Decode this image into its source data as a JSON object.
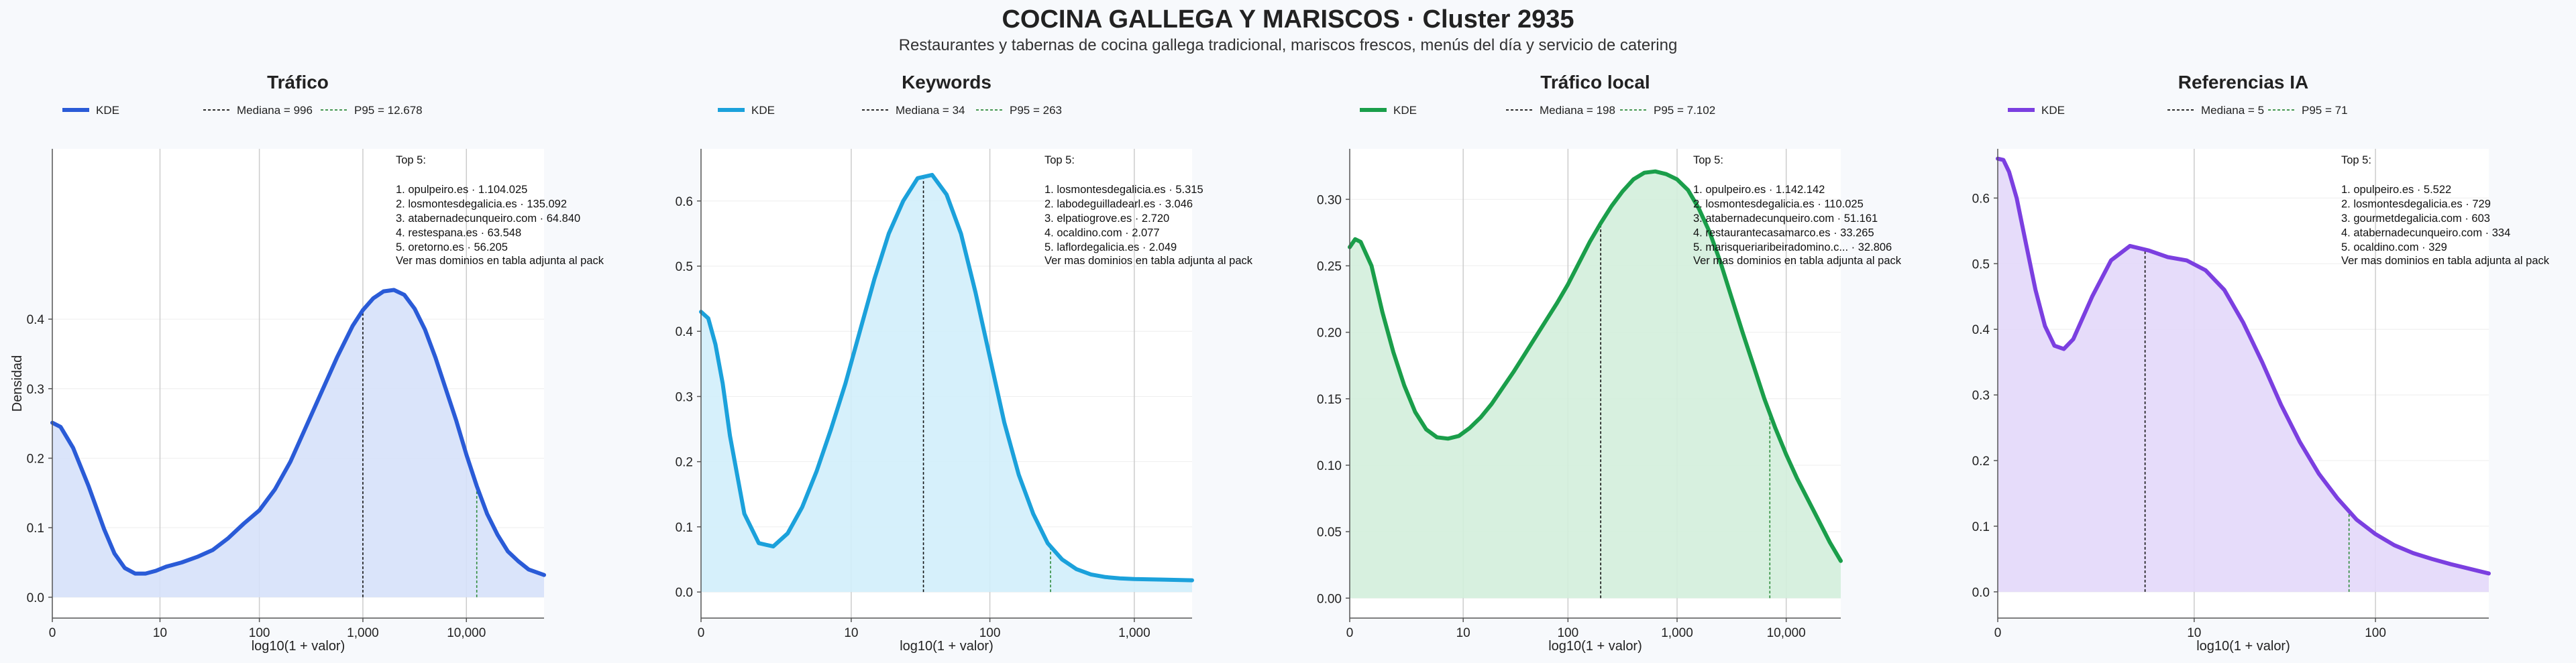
{
  "title": "COCINA GALLEGA Y MARISCOS · Cluster 2935",
  "subtitle": "Restaurantes y tabernas de cocina gallega tradicional, mariscos frescos, menús del día y servicio de catering",
  "chart_data": [
    {
      "type": "area",
      "title": "Tráfico",
      "color": "#2a5bd7",
      "fill": "#d6e1fa",
      "xlabel": "log10(1 + valor)",
      "ylabel": "Densidad",
      "xlim": [
        0,
        4.75
      ],
      "ylim": [
        -0.03,
        0.645
      ],
      "x_ticks": [
        {
          "v": 0,
          "label": "0"
        },
        {
          "v": 1.04,
          "label": "10"
        },
        {
          "v": 2.0,
          "label": "100"
        },
        {
          "v": 3.0,
          "label": "1,000"
        },
        {
          "v": 4.0,
          "label": "10,000"
        }
      ],
      "y_ticks": [
        {
          "v": 0,
          "label": "0.0"
        },
        {
          "v": 0.1,
          "label": "0.1"
        },
        {
          "v": 0.2,
          "label": "0.2"
        },
        {
          "v": 0.3,
          "label": "0.3"
        },
        {
          "v": 0.4,
          "label": "0.4"
        }
      ],
      "kde_x": [
        0,
        0.08,
        0.2,
        0.35,
        0.5,
        0.6,
        0.7,
        0.8,
        0.9,
        1.0,
        1.1,
        1.25,
        1.4,
        1.55,
        1.7,
        1.85,
        2.0,
        2.15,
        2.3,
        2.45,
        2.6,
        2.75,
        2.9,
        3.0,
        3.1,
        3.2,
        3.3,
        3.4,
        3.5,
        3.6,
        3.7,
        3.8,
        3.9,
        4.0,
        4.1,
        4.2,
        4.3,
        4.4,
        4.5,
        4.6,
        4.75
      ],
      "kde_y": [
        0.251,
        0.245,
        0.215,
        0.16,
        0.098,
        0.063,
        0.042,
        0.034,
        0.034,
        0.038,
        0.044,
        0.05,
        0.058,
        0.068,
        0.085,
        0.106,
        0.125,
        0.155,
        0.195,
        0.245,
        0.295,
        0.345,
        0.39,
        0.413,
        0.43,
        0.44,
        0.442,
        0.435,
        0.415,
        0.385,
        0.345,
        0.3,
        0.255,
        0.205,
        0.16,
        0.12,
        0.09,
        0.066,
        0.052,
        0.04,
        0.032
      ],
      "legend": {
        "kde": "KDE",
        "median": "Mediana = 996",
        "p95": "P95 = 12.678"
      },
      "median": 3.0,
      "p95": 4.1,
      "top5": {
        "header": "Top 5:",
        "items": [
          "1. opulpeiro.es · 1.104.025",
          "2. losmontesdegalicia.es · 135.092",
          "3. atabernadecunqueiro.com · 64.840",
          "4. restespana.es · 63.548",
          "5. oretorno.es · 56.205"
        ],
        "footer": "Ver mas dominios en tabla adjunta al pack"
      }
    },
    {
      "type": "area",
      "title": "Keywords",
      "color": "#1ba1db",
      "fill": "#d2eefb",
      "xlabel": "log10(1 + valor)",
      "ylabel": "",
      "xlim": [
        0,
        3.4
      ],
      "ylim": [
        -0.04,
        0.68
      ],
      "x_ticks": [
        {
          "v": 0,
          "label": "0"
        },
        {
          "v": 1.04,
          "label": "10"
        },
        {
          "v": 2.0,
          "label": "100"
        },
        {
          "v": 3.0,
          "label": "1,000"
        }
      ],
      "y_ticks": [
        {
          "v": 0,
          "label": "0.0"
        },
        {
          "v": 0.1,
          "label": "0.1"
        },
        {
          "v": 0.2,
          "label": "0.2"
        },
        {
          "v": 0.3,
          "label": "0.3"
        },
        {
          "v": 0.4,
          "label": "0.4"
        },
        {
          "v": 0.5,
          "label": "0.5"
        },
        {
          "v": 0.6,
          "label": "0.6"
        }
      ],
      "kde_x": [
        0,
        0.05,
        0.1,
        0.15,
        0.2,
        0.3,
        0.4,
        0.5,
        0.6,
        0.7,
        0.8,
        0.9,
        1.0,
        1.1,
        1.2,
        1.3,
        1.4,
        1.5,
        1.6,
        1.7,
        1.8,
        1.9,
        2.0,
        2.1,
        2.2,
        2.3,
        2.4,
        2.5,
        2.6,
        2.7,
        2.8,
        2.9,
        3.0,
        3.2,
        3.4
      ],
      "kde_y": [
        0.43,
        0.42,
        0.38,
        0.32,
        0.24,
        0.12,
        0.075,
        0.07,
        0.09,
        0.13,
        0.185,
        0.25,
        0.32,
        0.4,
        0.48,
        0.55,
        0.6,
        0.635,
        0.64,
        0.61,
        0.55,
        0.46,
        0.36,
        0.26,
        0.18,
        0.12,
        0.075,
        0.05,
        0.035,
        0.027,
        0.023,
        0.021,
        0.02,
        0.019,
        0.018
      ],
      "legend": {
        "kde": "KDE",
        "median": "Mediana = 34",
        "p95": "P95 = 263"
      },
      "median": 1.54,
      "p95": 2.42,
      "top5": {
        "header": "Top 5:",
        "items": [
          "1. losmontesdegalicia.es · 5.315",
          "2. labodeguilladearl.es · 3.046",
          "3. elpatiogrove.es · 2.720",
          "4. ocaldino.com · 2.077",
          "5. laflordegalicia.es · 2.049"
        ],
        "footer": "Ver mas dominios en tabla adjunta al pack"
      }
    },
    {
      "type": "area",
      "title": "Tráfico local",
      "color": "#1a9e4a",
      "fill": "#d3eedb",
      "xlabel": "log10(1 + valor)",
      "ylabel": "",
      "xlim": [
        0,
        4.5
      ],
      "ylim": [
        -0.015,
        0.338
      ],
      "x_ticks": [
        {
          "v": 0,
          "label": "0"
        },
        {
          "v": 1.04,
          "label": "10"
        },
        {
          "v": 2.0,
          "label": "100"
        },
        {
          "v": 3.0,
          "label": "1,000"
        },
        {
          "v": 4.0,
          "label": "10,000"
        }
      ],
      "y_ticks": [
        {
          "v": 0,
          "label": "0.00"
        },
        {
          "v": 0.05,
          "label": "0.05"
        },
        {
          "v": 0.1,
          "label": "0.10"
        },
        {
          "v": 0.15,
          "label": "0.15"
        },
        {
          "v": 0.2,
          "label": "0.20"
        },
        {
          "v": 0.25,
          "label": "0.25"
        },
        {
          "v": 0.3,
          "label": "0.30"
        }
      ],
      "kde_x": [
        0,
        0.05,
        0.1,
        0.2,
        0.3,
        0.4,
        0.5,
        0.6,
        0.7,
        0.8,
        0.9,
        1.0,
        1.1,
        1.2,
        1.3,
        1.4,
        1.5,
        1.6,
        1.7,
        1.8,
        1.9,
        2.0,
        2.1,
        2.2,
        2.3,
        2.4,
        2.5,
        2.6,
        2.7,
        2.8,
        2.9,
        3.0,
        3.1,
        3.2,
        3.3,
        3.4,
        3.5,
        3.6,
        3.7,
        3.8,
        3.9,
        4.0,
        4.1,
        4.2,
        4.3,
        4.4,
        4.5
      ],
      "kde_y": [
        0.264,
        0.27,
        0.268,
        0.25,
        0.215,
        0.185,
        0.16,
        0.14,
        0.127,
        0.121,
        0.12,
        0.122,
        0.128,
        0.136,
        0.146,
        0.158,
        0.17,
        0.183,
        0.196,
        0.209,
        0.222,
        0.236,
        0.252,
        0.268,
        0.282,
        0.295,
        0.306,
        0.315,
        0.32,
        0.321,
        0.319,
        0.315,
        0.307,
        0.293,
        0.275,
        0.252,
        0.226,
        0.2,
        0.175,
        0.15,
        0.128,
        0.108,
        0.09,
        0.074,
        0.058,
        0.042,
        0.028
      ],
      "legend": {
        "kde": "KDE",
        "median": "Mediana = 198",
        "p95": "P95 = 7.102"
      },
      "median": 2.3,
      "p95": 3.85,
      "top5": {
        "header": "Top 5:",
        "items": [
          "1. opulpeiro.es · 1.142.142",
          "2. losmontesdegalicia.es · 110.025",
          "3. atabernadecunqueiro.com · 51.161",
          "4. restaurantecasamarco.es · 33.265",
          "5. marisqueriaribeiradomino.c... · 32.806"
        ],
        "footer": "Ver mas dominios en tabla adjunta al pack"
      }
    },
    {
      "type": "area",
      "title": "Referencias IA",
      "color": "#7b3fe0",
      "fill": "#e3d8fa",
      "xlabel": "log10(1 + valor)",
      "ylabel": "",
      "xlim": [
        0,
        2.6
      ],
      "ylim": [
        -0.04,
        0.675
      ],
      "x_ticks": [
        {
          "v": 0,
          "label": "0"
        },
        {
          "v": 1.04,
          "label": "10"
        },
        {
          "v": 2.0,
          "label": "100"
        }
      ],
      "y_ticks": [
        {
          "v": 0,
          "label": "0.0"
        },
        {
          "v": 0.1,
          "label": "0.1"
        },
        {
          "v": 0.2,
          "label": "0.2"
        },
        {
          "v": 0.3,
          "label": "0.3"
        },
        {
          "v": 0.4,
          "label": "0.4"
        },
        {
          "v": 0.5,
          "label": "0.5"
        },
        {
          "v": 0.6,
          "label": "0.6"
        }
      ],
      "kde_x": [
        0,
        0.03,
        0.06,
        0.1,
        0.15,
        0.2,
        0.25,
        0.3,
        0.35,
        0.4,
        0.5,
        0.6,
        0.7,
        0.8,
        0.9,
        1.0,
        1.1,
        1.2,
        1.3,
        1.4,
        1.5,
        1.6,
        1.7,
        1.8,
        1.9,
        2.0,
        2.1,
        2.2,
        2.3,
        2.4,
        2.5,
        2.6
      ],
      "kde_y": [
        0.66,
        0.658,
        0.64,
        0.6,
        0.53,
        0.46,
        0.405,
        0.375,
        0.37,
        0.385,
        0.45,
        0.505,
        0.527,
        0.52,
        0.51,
        0.505,
        0.49,
        0.46,
        0.41,
        0.35,
        0.285,
        0.228,
        0.18,
        0.142,
        0.11,
        0.088,
        0.071,
        0.059,
        0.05,
        0.042,
        0.035,
        0.028
      ],
      "legend": {
        "kde": "KDE",
        "median": "Mediana = 5",
        "p95": "P95 = 71"
      },
      "median": 0.78,
      "p95": 1.86,
      "top5": {
        "header": "Top 5:",
        "items": [
          "1. opulpeiro.es · 5.522",
          "2. losmontesdegalicia.es · 729",
          "3. gourmetdegalicia.com · 603",
          "4. atabernadecunqueiro.com · 334",
          "5. ocaldino.com · 329"
        ],
        "footer": "Ver mas dominios en tabla adjunta al pack"
      }
    }
  ]
}
